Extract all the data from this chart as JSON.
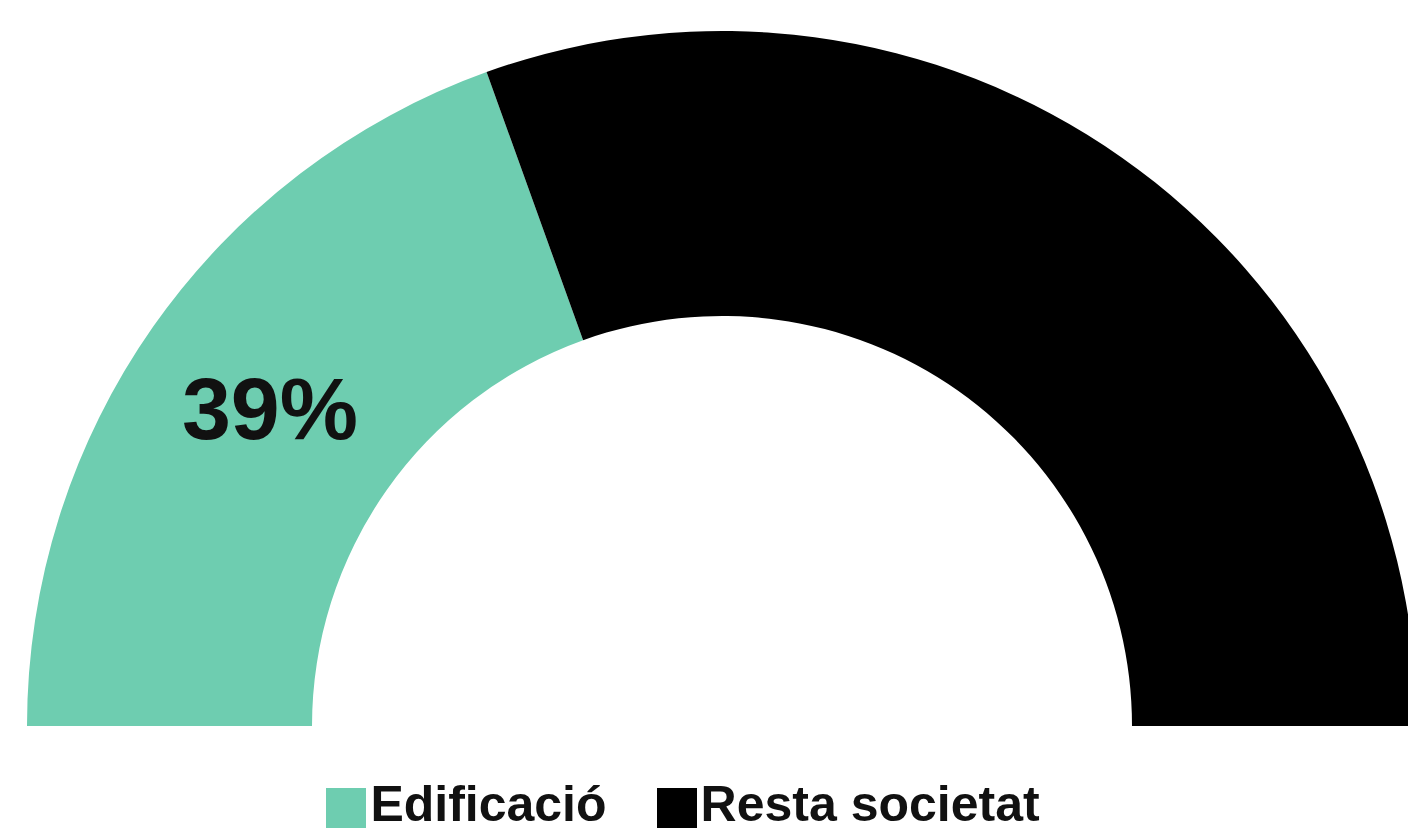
{
  "chart_data": {
    "type": "donut",
    "categories": [
      "Edificació",
      "Resta societat"
    ],
    "values": [
      39,
      61
    ],
    "colors": [
      "#6ecdb0",
      "#000000"
    ],
    "value_labels": [
      "39%",
      null
    ],
    "legend": "bottom"
  }
}
